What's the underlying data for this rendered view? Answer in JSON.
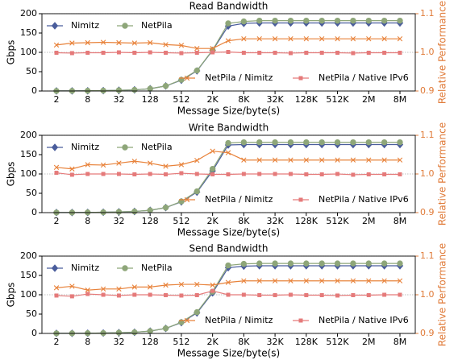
{
  "chart_data": [
    {
      "type": "line",
      "title": "Read Bandwidth",
      "xlabel": "Message Size/byte(s)",
      "ylabel": "Gbps",
      "y2label": "Relative Performance",
      "categories": [
        "2",
        null,
        "8",
        null,
        "32",
        null,
        "128",
        null,
        "512",
        null,
        "2K",
        null,
        "8K",
        null,
        "32K",
        null,
        "128K",
        null,
        "512K",
        null,
        "2M",
        null,
        "8M"
      ],
      "ylim": [
        0,
        200
      ],
      "yticks": [
        0,
        50,
        100,
        150,
        200
      ],
      "y2lim": [
        0.9,
        1.1
      ],
      "y2ticks": [
        0.9,
        {
          "value": 1,
          "label": "1.0"
        },
        1.1
      ],
      "y2grid": true,
      "legend": "upper left",
      "legend2": "lower right",
      "series": [
        {
          "name": "Nimitz",
          "color": "#4a5d9c",
          "marker": "diamond",
          "values": [
            0.2,
            0.3,
            0.5,
            1,
            2,
            3,
            6,
            13,
            28,
            52,
            105,
            168,
            175,
            176,
            176,
            176,
            176,
            176,
            176,
            176,
            176,
            176,
            176
          ]
        },
        {
          "name": "NetPila",
          "color": "#8ea679",
          "marker": "circle",
          "values": [
            0.2,
            0.3,
            0.5,
            1,
            2,
            3,
            6,
            13,
            29,
            53,
            106,
            175,
            180,
            182,
            182,
            182,
            182,
            182,
            182,
            182,
            182,
            182,
            182
          ]
        },
        {
          "name": "NetPila / Nimitz",
          "color": "#e8823a",
          "marker": "x",
          "axis": "y2",
          "values": [
            1.019,
            1.024,
            1.025,
            1.026,
            1.025,
            1.024,
            1.025,
            1.02,
            1.018,
            1.01,
            1.01,
            1.03,
            1.035,
            1.035,
            1.035,
            1.035,
            1.035,
            1.035,
            1.035,
            1.035,
            1.035,
            1.035,
            1.035
          ]
        },
        {
          "name": "NetPila / Native IPv6",
          "color": "#e57a7a",
          "marker": "square",
          "axis": "y2",
          "values": [
            0.999,
            0.998,
            0.999,
            0.999,
            1.0,
            0.999,
            1.0,
            0.999,
            0.998,
            0.999,
            1.0,
            1.001,
            0.999,
            0.999,
            0.999,
            0.998,
            0.999,
            0.999,
            0.999,
            0.998,
            0.999,
            0.999,
            0.999
          ]
        }
      ]
    },
    {
      "type": "line",
      "title": "Write Bandwidth",
      "xlabel": "Message Size/byte(s)",
      "ylabel": "Gbps",
      "y2label": "Relative Performance",
      "categories": [
        "2",
        null,
        "8",
        null,
        "32",
        null,
        "128",
        null,
        "512",
        null,
        "2K",
        null,
        "8K",
        null,
        "32K",
        null,
        "128K",
        null,
        "512K",
        null,
        "2M",
        null,
        "8M"
      ],
      "ylim": [
        0,
        200
      ],
      "yticks": [
        0,
        50,
        100,
        150,
        200
      ],
      "y2lim": [
        0.9,
        1.1
      ],
      "y2ticks": [
        0.9,
        {
          "value": 1,
          "label": "1.0"
        },
        1.1
      ],
      "y2grid": true,
      "legend": "upper left",
      "legend2": "lower right",
      "series": [
        {
          "name": "Nimitz",
          "color": "#4a5d9c",
          "marker": "diamond",
          "values": [
            0.2,
            0.3,
            0.5,
            1,
            2,
            3,
            6,
            13,
            28,
            53,
            108,
            175,
            176,
            176,
            176,
            176,
            176,
            176,
            176,
            176,
            176,
            176,
            176
          ]
        },
        {
          "name": "NetPila",
          "color": "#8ea679",
          "marker": "circle",
          "values": [
            0.2,
            0.3,
            0.5,
            1,
            2,
            3,
            6,
            13,
            29,
            55,
            113,
            180,
            182,
            182,
            182,
            182,
            182,
            182,
            182,
            182,
            182,
            182,
            182
          ]
        },
        {
          "name": "NetPila / Nimitz",
          "color": "#e8823a",
          "marker": "x",
          "axis": "y2",
          "values": [
            1.017,
            1.013,
            1.024,
            1.023,
            1.028,
            1.033,
            1.028,
            1.02,
            1.024,
            1.035,
            1.059,
            1.055,
            1.036,
            1.036,
            1.036,
            1.036,
            1.036,
            1.036,
            1.036,
            1.036,
            1.036,
            1.036,
            1.036
          ]
        },
        {
          "name": "NetPila / Native IPv6",
          "color": "#e57a7a",
          "marker": "square",
          "axis": "y2",
          "values": [
            1.003,
            0.998,
            1.0,
            1.0,
            1.0,
            0.999,
            1.0,
            0.999,
            1.002,
            1.0,
            0.999,
            0.999,
            1.0,
            1.0,
            1.0,
            1.0,
            0.999,
            0.999,
            1.0,
            0.998,
            0.999,
            0.999,
            0.999
          ]
        }
      ]
    },
    {
      "type": "line",
      "title": "Send Bandwidth",
      "xlabel": "Message Size/byte(s)",
      "ylabel": "Gbps",
      "y2label": "Relative Performance",
      "categories": [
        "2",
        null,
        "8",
        null,
        "32",
        null,
        "128",
        null,
        "512",
        null,
        "2K",
        null,
        "8K",
        null,
        "32K",
        null,
        "128K",
        null,
        "512K",
        null,
        "2M",
        null,
        "8M"
      ],
      "ylim": [
        0,
        200
      ],
      "yticks": [
        0,
        50,
        100,
        150,
        200
      ],
      "y2lim": [
        0.9,
        1.1
      ],
      "y2ticks": [
        0.9,
        {
          "value": 1,
          "label": "1.0"
        },
        1.1
      ],
      "y2grid": true,
      "legend": "upper left",
      "legend2": "lower right",
      "series": [
        {
          "name": "Nimitz",
          "color": "#4a5d9c",
          "marker": "diamond",
          "values": [
            0.2,
            0.3,
            0.5,
            1,
            2,
            3,
            6,
            13,
            28,
            53,
            105,
            170,
            174,
            175,
            175,
            175,
            175,
            175,
            175,
            175,
            175,
            175,
            175
          ]
        },
        {
          "name": "NetPila",
          "color": "#8ea679",
          "marker": "circle",
          "values": [
            0.2,
            0.3,
            0.5,
            1,
            2,
            3,
            6,
            13,
            29,
            55,
            108,
            176,
            180,
            181,
            181,
            181,
            181,
            181,
            181,
            181,
            181,
            181,
            181
          ]
        },
        {
          "name": "NetPila / Nimitz",
          "color": "#e8823a",
          "marker": "x",
          "axis": "y2",
          "values": [
            1.018,
            1.022,
            1.012,
            1.015,
            1.015,
            1.02,
            1.02,
            1.025,
            1.027,
            1.027,
            1.025,
            1.032,
            1.036,
            1.036,
            1.036,
            1.036,
            1.036,
            1.036,
            1.036,
            1.036,
            1.036,
            1.036,
            1.036
          ]
        },
        {
          "name": "NetPila / Native IPv6",
          "color": "#e57a7a",
          "marker": "square",
          "axis": "y2",
          "values": [
            0.998,
            0.996,
            1.002,
            1.0,
            0.998,
            1.0,
            1.0,
            0.999,
            0.998,
            0.999,
            1.01,
            1.0,
            1.0,
            0.999,
            0.999,
            1.0,
            0.999,
            0.999,
            0.998,
            0.999,
            0.999,
            1.0,
            1.0
          ]
        }
      ]
    }
  ]
}
